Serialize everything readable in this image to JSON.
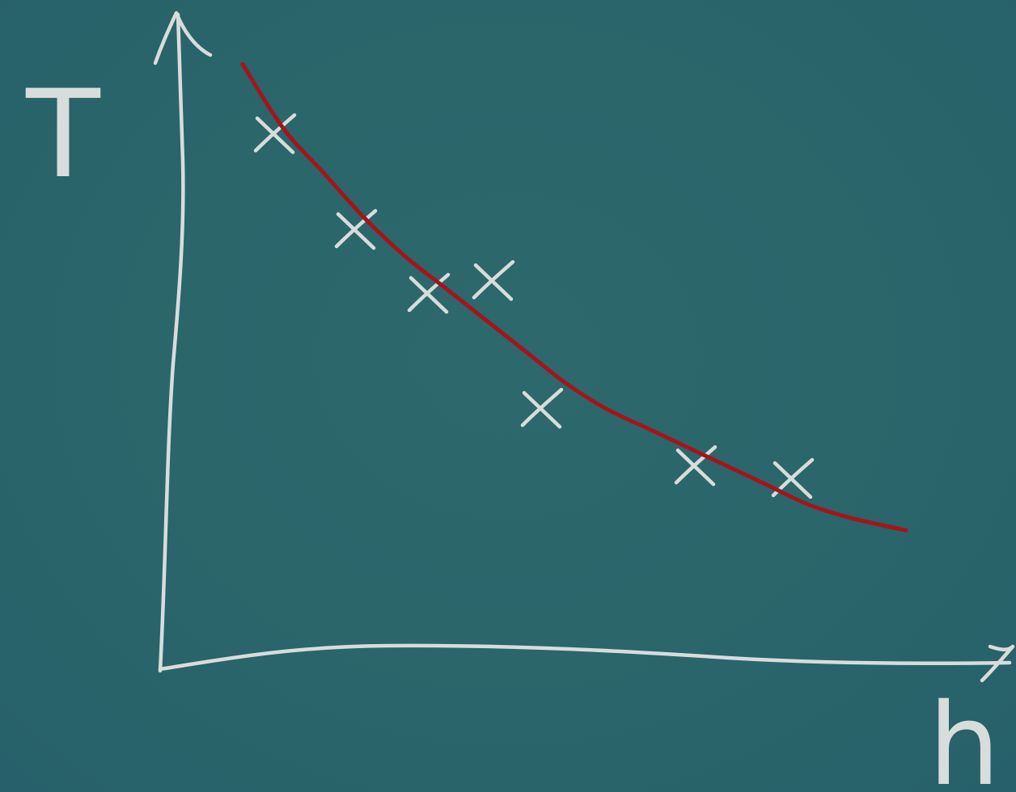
{
  "chart_data": {
    "type": "scatter",
    "xlabel": "h",
    "ylabel": "T",
    "xlim": [
      0,
      10
    ],
    "ylim": [
      0,
      10
    ],
    "grid": false,
    "legend": "none",
    "points": [
      {
        "x": 1.4,
        "y": 8.4
      },
      {
        "x": 2.4,
        "y": 6.9
      },
      {
        "x": 3.3,
        "y": 5.9
      },
      {
        "x": 4.1,
        "y": 6.1
      },
      {
        "x": 4.7,
        "y": 4.1
      },
      {
        "x": 6.6,
        "y": 3.2
      },
      {
        "x": 7.8,
        "y": 3.0
      }
    ],
    "fit_curve": {
      "x": [
        1.0,
        1.5,
        2.0,
        2.5,
        3.0,
        3.5,
        4.0,
        4.5,
        5.0,
        5.5,
        6.0,
        6.5,
        7.0,
        7.5,
        8.0,
        8.5,
        9.2
      ],
      "y": [
        9.5,
        8.5,
        7.8,
        7.1,
        6.5,
        6.0,
        5.5,
        5.0,
        4.5,
        4.1,
        3.8,
        3.5,
        3.2,
        2.9,
        2.6,
        2.4,
        2.2
      ]
    },
    "colors": {
      "background": "#2a6468",
      "chalk": "#d9dcdc",
      "fit_line": "#a5141b"
    }
  }
}
